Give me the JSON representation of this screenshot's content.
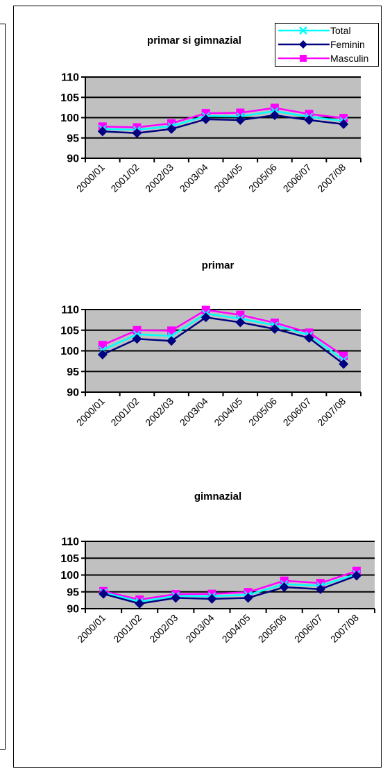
{
  "legend": {
    "items": [
      {
        "label": "Total",
        "color": "#00ffff",
        "marker": "x"
      },
      {
        "label": "Feminin",
        "color": "#000080",
        "marker": "diamond"
      },
      {
        "label": "Masculin",
        "color": "#ff00ff",
        "marker": "square"
      }
    ]
  },
  "chart_data": [
    {
      "type": "line",
      "title": "primar si gimnazial",
      "categories": [
        "2000/01",
        "2001/02",
        "2002/03",
        "2003/04",
        "2004/05",
        "2005/06",
        "2006/07",
        "2007/08"
      ],
      "ylim": [
        90,
        110
      ],
      "yticks": [
        90,
        95,
        100,
        105,
        110
      ],
      "grid": true,
      "legend": "top-right",
      "series": [
        {
          "name": "Total",
          "values": [
            97.2,
            97.0,
            97.9,
            100.4,
            100.3,
            101.6,
            100.2,
            99.2
          ]
        },
        {
          "name": "Feminin",
          "values": [
            96.6,
            96.2,
            97.2,
            99.6,
            99.4,
            100.6,
            99.4,
            98.4
          ]
        },
        {
          "name": "Masculin",
          "values": [
            97.8,
            97.6,
            98.6,
            101.1,
            101.2,
            102.4,
            100.9,
            99.9
          ]
        }
      ]
    },
    {
      "type": "line",
      "title": "primar",
      "categories": [
        "2000/01",
        "2001/02",
        "2002/03",
        "2003/04",
        "2004/05",
        "2005/06",
        "2006/07",
        "2007/08"
      ],
      "ylim": [
        90,
        110
      ],
      "yticks": [
        90,
        95,
        100,
        105,
        110
      ],
      "grid": true,
      "series": [
        {
          "name": "Total",
          "values": [
            100.2,
            104.0,
            103.6,
            109.0,
            107.8,
            106.2,
            103.8,
            97.8
          ]
        },
        {
          "name": "Feminin",
          "values": [
            99.1,
            102.9,
            102.4,
            108.1,
            106.9,
            105.3,
            103.1,
            96.8
          ]
        },
        {
          "name": "Masculin",
          "values": [
            101.4,
            105.0,
            104.9,
            109.9,
            108.7,
            106.8,
            104.4,
            98.8
          ]
        }
      ]
    },
    {
      "type": "line",
      "title": "gimnazial",
      "categories": [
        "2000/01",
        "2001/02",
        "2002/03",
        "2003/04",
        "2004/05",
        "2005/06",
        "2006/07",
        "2007/08"
      ],
      "ylim": [
        90,
        110
      ],
      "yticks": [
        90,
        95,
        100,
        105,
        110
      ],
      "grid": true,
      "series": [
        {
          "name": "Total",
          "values": [
            94.8,
            92.1,
            93.8,
            93.7,
            94.1,
            97.3,
            96.8,
            100.3
          ]
        },
        {
          "name": "Feminin",
          "values": [
            94.4,
            91.5,
            93.2,
            92.9,
            93.2,
            96.4,
            95.8,
            99.8
          ]
        },
        {
          "name": "Masculin",
          "values": [
            95.2,
            92.7,
            94.3,
            94.4,
            94.9,
            98.3,
            97.6,
            101.2
          ]
        }
      ]
    }
  ]
}
